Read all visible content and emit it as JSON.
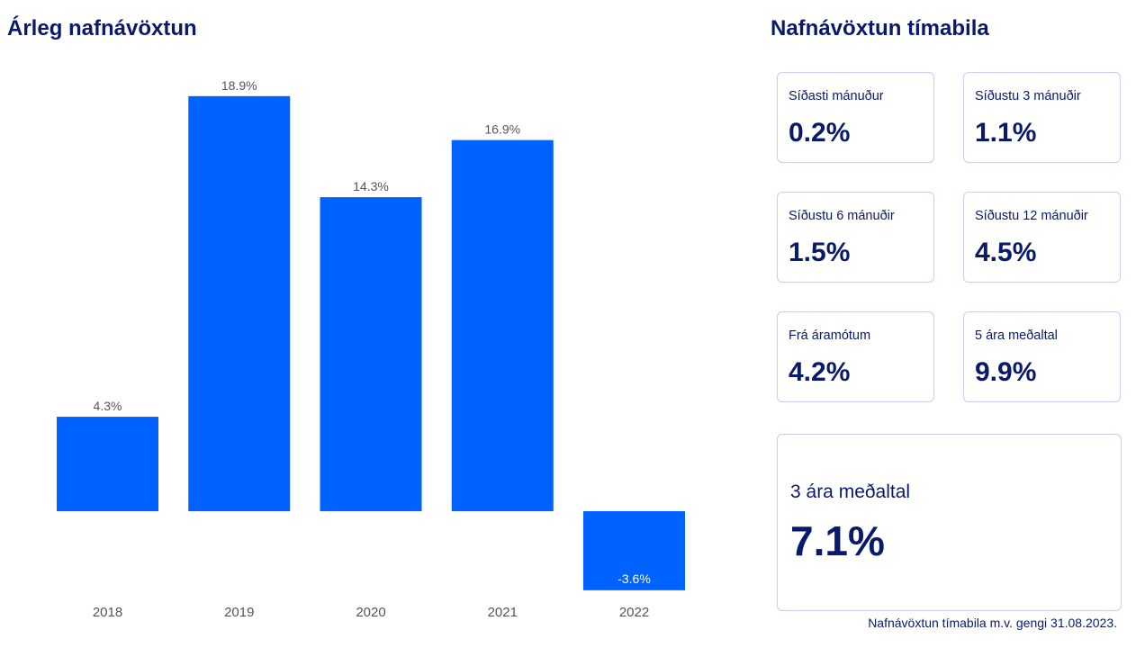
{
  "colors": {
    "bar": "#0062ff",
    "title": "#0a1a6b",
    "card_border": "#c9cdf0"
  },
  "chart_data": {
    "type": "bar",
    "title": "Árleg nafnávöxtun",
    "categories": [
      "2018",
      "2019",
      "2020",
      "2021",
      "2022"
    ],
    "values": [
      4.3,
      18.9,
      14.3,
      16.9,
      -3.6
    ],
    "data_labels": [
      "4.3%",
      "18.9%",
      "14.3%",
      "16.9%",
      "-3.6%"
    ],
    "xlabel": "",
    "ylabel": "",
    "ylim": [
      -3.6,
      18.9
    ],
    "grid": false,
    "legend": "none"
  },
  "periods": {
    "title": "Nafnávöxtun tímabila",
    "cards": [
      {
        "label": "Síðasti mánuður",
        "value": "0.2%"
      },
      {
        "label": "Síðustu 3 mánuðir",
        "value": "1.1%"
      },
      {
        "label": "Síðustu 6 mánuðir",
        "value": "1.5%"
      },
      {
        "label": "Síðustu 12 mánuðir",
        "value": "4.5%"
      },
      {
        "label": "Frá áramótum",
        "value": "4.2%"
      },
      {
        "label": "5 ára meðaltal",
        "value": "9.9%"
      }
    ],
    "big_card": {
      "label": "3 ára meðaltal",
      "value": "7.1%"
    },
    "footnote": "Nafnávöxtun tímabila m.v. gengi 31.08.2023."
  }
}
